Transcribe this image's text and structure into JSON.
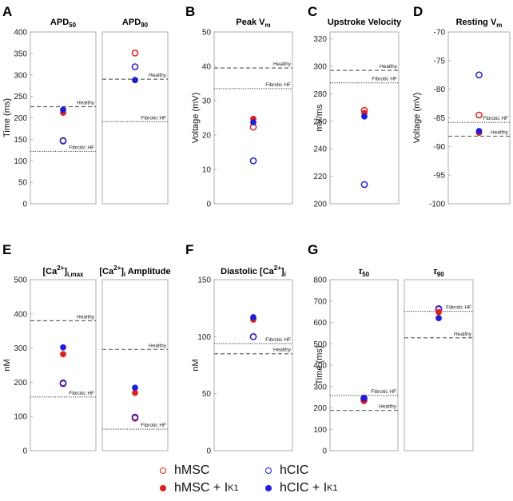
{
  "colors": {
    "red": "#e0201c",
    "blue": "#1f1fd8",
    "axis": "#333333",
    "ref": "#555555"
  },
  "legend": {
    "items": [
      {
        "label": "hMSC",
        "sub": "",
        "color": "#e0201c",
        "filled": false
      },
      {
        "label": "hCIC",
        "sub": "",
        "color": "#1f1fd8",
        "filled": false
      },
      {
        "label": "hMSC + I",
        "sub": "K1",
        "color": "#e0201c",
        "filled": true
      },
      {
        "label": "hCIC + I",
        "sub": "K1",
        "color": "#1f1fd8",
        "filled": true
      }
    ]
  },
  "chart_data": [
    {
      "panel": "A",
      "ylabel": "Time (ms)",
      "ylim": [
        0,
        400
      ],
      "yticks": [
        0,
        50,
        100,
        150,
        200,
        250,
        300,
        350,
        400
      ],
      "subplots": [
        {
          "title": "APD",
          "title_sub": "50",
          "refs": [
            {
              "label": "Healthy",
              "value": 226,
              "style": "dashed"
            },
            {
              "label": "Fibrotic HF",
              "value": 122,
              "style": "dotted"
            }
          ],
          "points": {
            "hMSC": 146,
            "hCIC": 147,
            "hMSC + IK1": 212,
            "hCIC + IK1": 219
          }
        },
        {
          "title": "APD",
          "title_sub": "90",
          "refs": [
            {
              "label": "Healthy",
              "value": 290,
              "style": "dashed"
            },
            {
              "label": "Fibrotic HF",
              "value": 191,
              "style": "dotted"
            }
          ],
          "points": {
            "hMSC": 351,
            "hCIC": 319,
            "hMSC + IK1": 288,
            "hCIC + IK1": 288
          }
        }
      ]
    },
    {
      "panel": "B",
      "ylabel": "Voltage (mV)",
      "ylim": [
        0,
        50
      ],
      "yticks": [
        0,
        10,
        20,
        30,
        40,
        50
      ],
      "subplots": [
        {
          "title": "Peak V",
          "title_sub": "m",
          "refs": [
            {
              "label": "Healthy",
              "value": 39.5,
              "style": "dashed"
            },
            {
              "label": "Fibrotic HF",
              "value": 33.5,
              "style": "dotted"
            }
          ],
          "points": {
            "hMSC": 22.3,
            "hCIC": 12.5,
            "hMSC + IK1": 24.7,
            "hCIC + IK1": 23.7
          }
        }
      ]
    },
    {
      "panel": "C",
      "ylabel": "mV/ms",
      "ylim": [
        200,
        325
      ],
      "yticks": [
        200,
        220,
        240,
        260,
        280,
        300,
        320
      ],
      "subplots": [
        {
          "title": "Upstroke Velocity",
          "title_sub": "",
          "refs": [
            {
              "label": "Healthy",
              "value": 297,
              "style": "dashed"
            },
            {
              "label": "Fibrotic HF",
              "value": 288,
              "style": "dotted"
            }
          ],
          "points": {
            "hMSC": 268,
            "hCIC": 214,
            "hMSC + IK1": 266,
            "hCIC + IK1": 263.5
          }
        }
      ]
    },
    {
      "panel": "D",
      "ylabel": "Voltage (mV)",
      "ylim": [
        -100,
        -70
      ],
      "yticks": [
        -100,
        -95,
        -90,
        -85,
        -80,
        -75,
        -70
      ],
      "subplots": [
        {
          "title": "Resting V",
          "title_sub": "m",
          "refs": [
            {
              "label": "Healthy",
              "value": -88.2,
              "style": "dashed"
            },
            {
              "label": "Fibrotic HF",
              "value": -85.8,
              "style": "dotted"
            }
          ],
          "points": {
            "hMSC": -84.5,
            "hCIC": -77.5,
            "hMSC + IK1": -87.6,
            "hCIC + IK1": -87.3
          }
        }
      ]
    },
    {
      "panel": "E",
      "ylabel": "nM",
      "ylim": [
        0,
        500
      ],
      "yticks": [
        0,
        100,
        200,
        300,
        400,
        500
      ],
      "subplots": [
        {
          "title": "[Ca",
          "title_sup": "2+",
          "title_mid": "]",
          "title_sub": "i,max",
          "title_tail": "",
          "refs": [
            {
              "label": "Healthy",
              "value": 380,
              "style": "dashed"
            },
            {
              "label": "Fibrotic HF",
              "value": 157,
              "style": "dotted"
            }
          ],
          "points": {
            "hMSC": 196,
            "hCIC": 198,
            "hMSC + IK1": 282,
            "hCIC + IK1": 302
          }
        },
        {
          "title": "[Ca",
          "title_sup": "2+",
          "title_mid": "]",
          "title_sub": "i",
          "title_tail": " Amplitude",
          "refs": [
            {
              "label": "Healthy",
              "value": 296,
              "style": "dashed"
            },
            {
              "label": "Fibrotic HF",
              "value": 63,
              "style": "dotted"
            }
          ],
          "points": {
            "hMSC": 95,
            "hCIC": 98,
            "hMSC + IK1": 169,
            "hCIC + IK1": 184
          }
        }
      ]
    },
    {
      "panel": "F",
      "ylabel": "nM",
      "ylim": [
        0,
        150
      ],
      "yticks": [
        0,
        50,
        100,
        150
      ],
      "subplots": [
        {
          "title": "Diastolic [Ca",
          "title_sup": "2+",
          "title_mid": "]",
          "title_sub": "i",
          "title_tail": "",
          "refs": [
            {
              "label": "Healthy",
              "value": 85,
              "style": "dashed"
            },
            {
              "label": "Fibrotic HF",
              "value": 94,
              "style": "dotted"
            }
          ],
          "points": {
            "hMSC": 100,
            "hCIC": 100,
            "hMSC + IK1": 115,
            "hCIC + IK1": 117
          }
        }
      ]
    },
    {
      "panel": "G",
      "ylabel": "Time (ms)",
      "ylim": [
        0,
        800
      ],
      "yticks": [
        0,
        100,
        200,
        300,
        400,
        500,
        600,
        700,
        800
      ],
      "subplots": [
        {
          "title": "τ",
          "title_sub": "50",
          "refs": [
            {
              "label": "Healthy",
              "value": 188,
              "style": "dashed"
            },
            {
              "label": "Fibrotic HF",
              "value": 258,
              "style": "dotted"
            }
          ],
          "points": {
            "hMSC": 236,
            "hCIC": 246,
            "hMSC + IK1": 232,
            "hCIC + IK1": 244
          }
        },
        {
          "title": "τ",
          "title_sub": "90",
          "refs": [
            {
              "label": "Healthy",
              "value": 528,
              "style": "dashed"
            },
            {
              "label": "Fibrotic HF",
              "value": 652,
              "style": "dotted"
            }
          ],
          "points": {
            "hMSC": 661,
            "hCIC": 664,
            "hMSC + IK1": 648,
            "hCIC + IK1": 620
          }
        }
      ]
    }
  ]
}
